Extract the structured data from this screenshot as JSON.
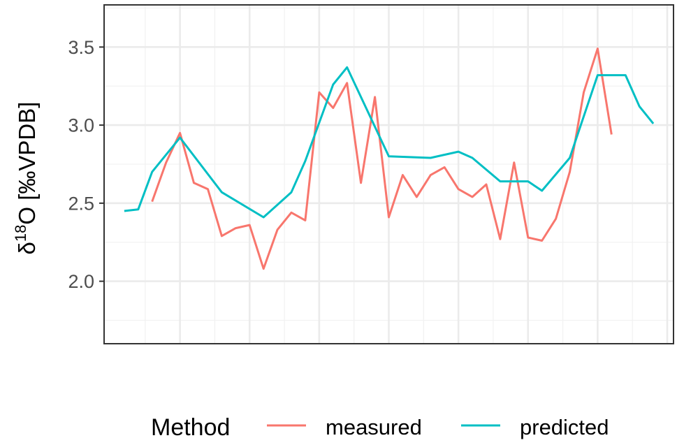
{
  "chart_data": {
    "type": "line",
    "ylabel": "δ18O [‰VPDB]",
    "ylabel_parts": {
      "symbol": "δ",
      "superscript": "18",
      "rest": "O [‰VPDB]"
    },
    "xlabel": "",
    "ylim": [
      1.6,
      3.77
    ],
    "xlim": [
      0.55,
      41.45
    ],
    "y_ticks": [
      2.0,
      2.5,
      3.0,
      3.5
    ],
    "y_tick_labels": [
      "2.0",
      "2.5",
      "3.0",
      "3.5"
    ],
    "x_major_ticks": [
      6,
      11,
      16,
      21,
      26,
      31,
      36,
      41
    ],
    "x_minor_ticks": [
      3.5,
      8.5,
      13.5,
      18.5,
      23.5,
      28.5,
      33.5,
      38.5
    ],
    "x_tick_labels_shown": false,
    "grid": true,
    "legend": {
      "title": "Method",
      "position": "bottom"
    },
    "series": [
      {
        "name": "measured",
        "color": "#F8766D",
        "x": [
          4,
          5,
          6,
          7,
          8,
          9,
          10,
          11,
          12,
          13,
          14,
          15,
          16,
          17,
          18,
          19,
          20,
          21,
          22,
          23,
          24,
          25,
          26,
          27,
          28,
          29,
          30,
          31,
          32,
          33,
          34,
          35,
          36,
          37
        ],
        "y": [
          2.51,
          2.76,
          2.95,
          2.63,
          2.59,
          2.29,
          2.34,
          2.36,
          2.08,
          2.33,
          2.44,
          2.39,
          3.21,
          3.11,
          3.27,
          2.63,
          3.18,
          2.41,
          2.68,
          2.54,
          2.68,
          2.73,
          2.59,
          2.54,
          2.62,
          2.27,
          2.76,
          2.28,
          2.26,
          2.4,
          2.7,
          3.21,
          3.49,
          2.94
        ]
      },
      {
        "name": "predicted",
        "color": "#00BFC4",
        "x": [
          2,
          3,
          4,
          6,
          9,
          12,
          14,
          15,
          17,
          18,
          21,
          24,
          26,
          27,
          29,
          31,
          32,
          34,
          36,
          38,
          39,
          40
        ],
        "y": [
          2.45,
          2.46,
          2.7,
          2.92,
          2.57,
          2.41,
          2.57,
          2.77,
          3.26,
          3.37,
          2.8,
          2.79,
          2.83,
          2.79,
          2.64,
          2.64,
          2.58,
          2.79,
          3.32,
          3.32,
          3.12,
          3.01
        ]
      }
    ]
  }
}
